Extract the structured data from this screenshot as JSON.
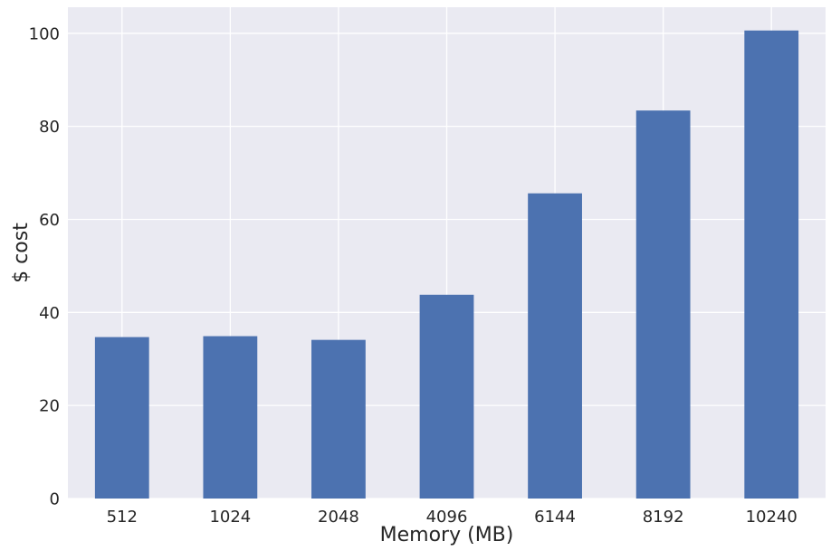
{
  "chart_data": {
    "type": "bar",
    "title": "",
    "xlabel": "Memory (MB)",
    "ylabel": "$ cost",
    "categories": [
      "512",
      "1024",
      "2048",
      "4096",
      "6144",
      "8192",
      "10240"
    ],
    "values": [
      34.7,
      34.9,
      34.1,
      43.8,
      65.6,
      83.4,
      100.6
    ],
    "ylim": [
      0,
      105.6
    ],
    "yticks": [
      0,
      20,
      40,
      60,
      80,
      100
    ],
    "grid": true,
    "legend": "none",
    "colors": {
      "bar": "#4c72b0",
      "background": "#eaeaf2",
      "grid": "#ffffff",
      "text": "#262626"
    }
  }
}
